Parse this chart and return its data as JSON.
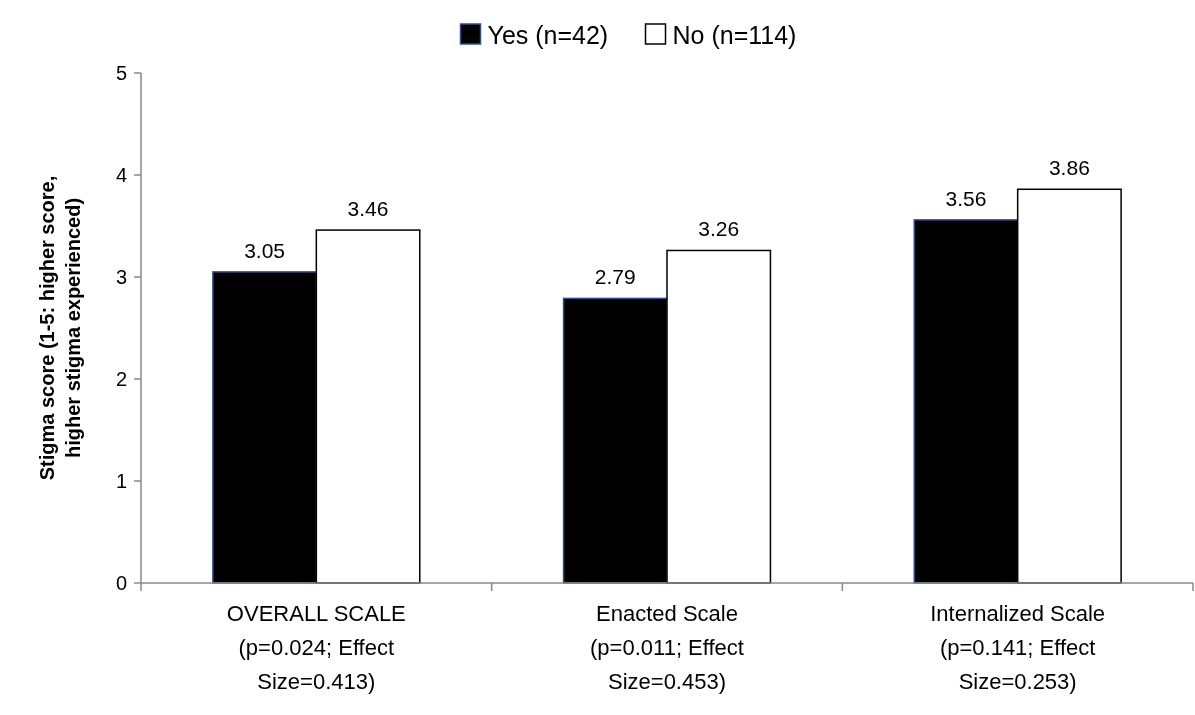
{
  "chart_data": {
    "type": "bar",
    "ylabel": "Stigma score (1-5: higher score,\nhigher stigma experienced)",
    "categories": [
      "OVERALL SCALE\n(p=0.024; Effect\nSize=0.413)",
      "Enacted Scale\n(p=0.011; Effect\nSize=0.453)",
      "Internalized Scale\n(p=0.141; Effect\nSize=0.253)"
    ],
    "series": [
      {
        "name": "Yes (n=42)",
        "color": "#000000",
        "values": [
          3.05,
          2.79,
          3.56
        ]
      },
      {
        "name": "No (n=114)",
        "color": "#ffffff",
        "values": [
          3.46,
          3.26,
          3.86
        ]
      }
    ],
    "ylim": [
      0,
      5
    ],
    "yticks": [
      0,
      1,
      2,
      3,
      4,
      5
    ],
    "grid": false,
    "legend": "top",
    "data_labels": true
  }
}
